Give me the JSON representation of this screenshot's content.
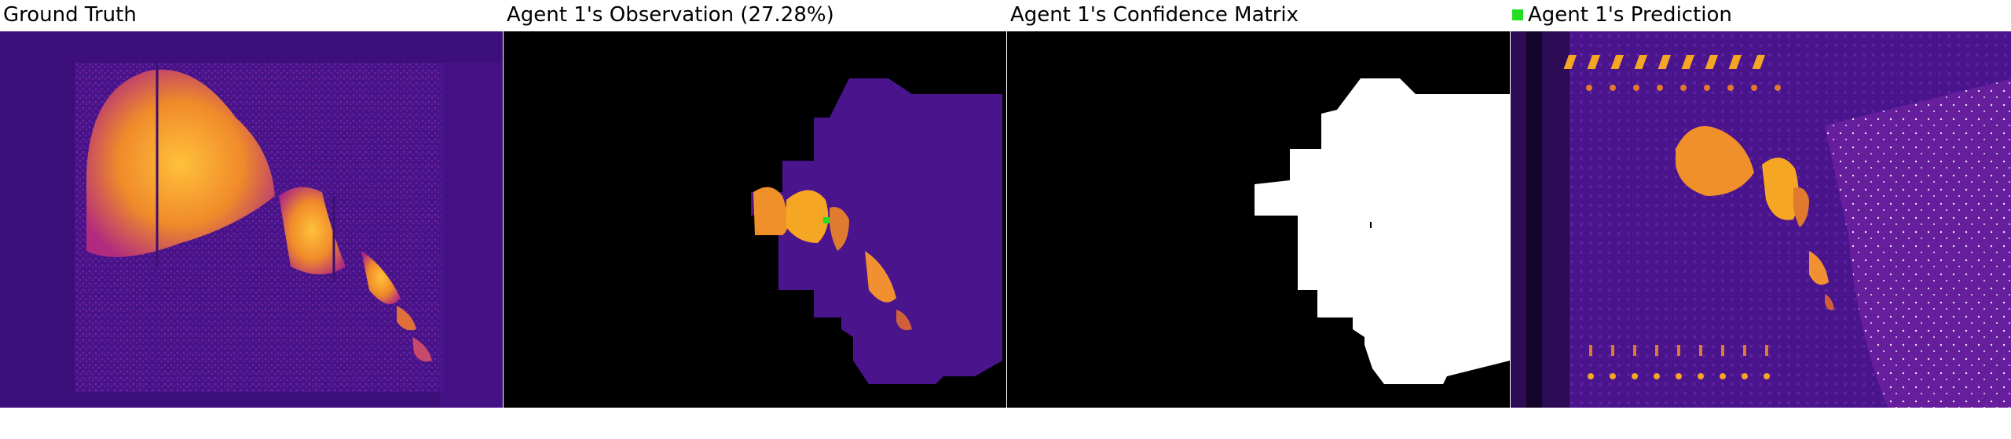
{
  "panels": {
    "ground_truth": {
      "title": "Ground Truth"
    },
    "observation": {
      "title": "Agent 1's Observation (27.28%)"
    },
    "confidence": {
      "title": "Agent 1's Confidence Matrix"
    },
    "prediction": {
      "title": "Agent 1's Prediction"
    }
  },
  "legend": {
    "agent_color": "#22dd22"
  },
  "colors": {
    "background_dark": "#3a0a6b",
    "heat_low": "#5a1a9a",
    "heat_mid": "#c43a7a",
    "heat_high": "#f5a623",
    "mask_black": "#000000",
    "confidence_white": "#ffffff"
  }
}
